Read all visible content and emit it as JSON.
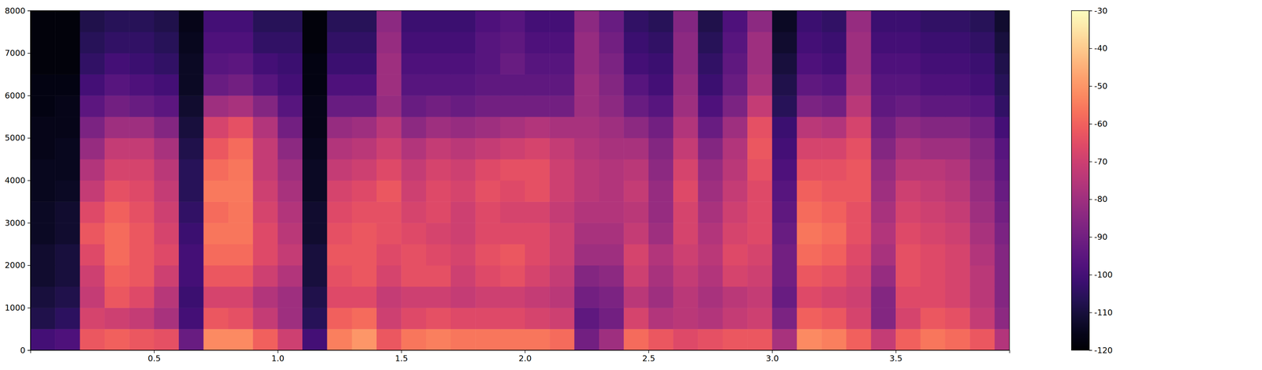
{
  "chart_data": {
    "type": "heatmap",
    "xlim": [
      0,
      3.96
    ],
    "xticks": [
      0.5,
      {
        "value": 1,
        "label": "1.0"
      },
      1.5,
      {
        "value": 2,
        "label": "2.0"
      },
      2.5,
      {
        "value": 3,
        "label": "3.0"
      },
      3.5
    ],
    "ylim": [
      0,
      8000
    ],
    "yticks": [
      0,
      1000,
      2000,
      3000,
      4000,
      5000,
      6000,
      7000,
      8000
    ],
    "x_bins": [
      0,
      0.1,
      0.2,
      0.3,
      0.4,
      0.5,
      0.6,
      0.7,
      0.8,
      0.9,
      1.0,
      1.1,
      1.2,
      1.3,
      1.4,
      1.5,
      1.6,
      1.7,
      1.8,
      1.9,
      2.0,
      2.1,
      2.2,
      2.3,
      2.4,
      2.5,
      2.6,
      2.7,
      2.8,
      2.9,
      3.0,
      3.1,
      3.2,
      3.3,
      3.4,
      3.5,
      3.6,
      3.7,
      3.8,
      3.9,
      3.96
    ],
    "y_bins": [
      0,
      500,
      1000,
      1500,
      2000,
      2500,
      3000,
      3500,
      4000,
      4500,
      5000,
      5500,
      6000,
      6500,
      7000,
      7500,
      8000
    ],
    "z": [
      [
        -100,
        -108,
        -110,
        -112,
        -112,
        -114,
        -114,
        -115,
        -115,
        -116,
        -116,
        -117,
        -117,
        -118,
        -118,
        -118
      ],
      [
        -98,
        -105,
        -108,
        -110,
        -110,
        -112,
        -112,
        -114,
        -115,
        -115,
        -116,
        -116,
        -117,
        -118,
        -118,
        -118
      ],
      [
        -62,
        -68,
        -72,
        -70,
        -66,
        -62,
        -66,
        -72,
        -76,
        -82,
        -88,
        -95,
        -100,
        -104,
        -106,
        -108
      ],
      [
        -60,
        -70,
        -62,
        -60,
        -58,
        -58,
        -60,
        -64,
        -68,
        -72,
        -80,
        -90,
        -96,
        -100,
        -104,
        -106
      ],
      [
        -62,
        -72,
        -66,
        -62,
        -62,
        -62,
        -64,
        -66,
        -68,
        -72,
        -80,
        -92,
        -98,
        -102,
        -104,
        -106
      ],
      [
        -64,
        -78,
        -75,
        -70,
        -66,
        -68,
        -70,
        -72,
        -74,
        -78,
        -86,
        -95,
        -100,
        -104,
        -106,
        -108
      ],
      [
        -92,
        -100,
        -102,
        -100,
        -100,
        -102,
        -104,
        -106,
        -106,
        -108,
        -110,
        -112,
        -114,
        -114,
        -115,
        -116
      ],
      [
        -52,
        -62,
        -68,
        -62,
        -58,
        -56,
        -58,
        -55,
        -58,
        -62,
        -68,
        -80,
        -92,
        -96,
        -98,
        -100
      ],
      [
        -52,
        -64,
        -68,
        -62,
        -58,
        -56,
        -56,
        -55,
        -56,
        -58,
        -64,
        -78,
        -90,
        -95,
        -98,
        -100
      ],
      [
        -60,
        -72,
        -76,
        -70,
        -66,
        -66,
        -68,
        -70,
        -72,
        -72,
        -76,
        -86,
        -96,
        -100,
        -104,
        -106
      ],
      [
        -70,
        -80,
        -80,
        -76,
        -72,
        -74,
        -76,
        -78,
        -80,
        -84,
        -90,
        -96,
        -100,
        -102,
        -104,
        -106
      ],
      [
        -100,
        -106,
        -108,
        -110,
        -110,
        -112,
        -112,
        -114,
        -114,
        -115,
        -116,
        -116,
        -117,
        -117,
        -118,
        -118
      ],
      [
        -54,
        -60,
        -66,
        -64,
        -62,
        -64,
        -66,
        -68,
        -72,
        -76,
        -82,
        -92,
        -98,
        -102,
        -104,
        -106
      ],
      [
        -50,
        -58,
        -66,
        -62,
        -62,
        -62,
        -64,
        -66,
        -70,
        -74,
        -80,
        -92,
        -98,
        -102,
        -104,
        -106
      ],
      [
        -62,
        -70,
        -72,
        -68,
        -66,
        -64,
        -64,
        -62,
        -66,
        -70,
        -74,
        -82,
        -80,
        -80,
        -82,
        -84
      ],
      [
        -56,
        -66,
        -70,
        -64,
        -64,
        -66,
        -68,
        -70,
        -72,
        -76,
        -84,
        -92,
        -96,
        -98,
        -100,
        -102
      ],
      [
        -54,
        -64,
        -70,
        -64,
        -66,
        -68,
        -66,
        -66,
        -68,
        -72,
        -80,
        -90,
        -96,
        -98,
        -100,
        -102
      ],
      [
        -56,
        -66,
        -72,
        -70,
        -68,
        -70,
        -70,
        -68,
        -70,
        -74,
        -82,
        -92,
        -96,
        -98,
        -100,
        -102
      ],
      [
        -56,
        -66,
        -70,
        -66,
        -64,
        -66,
        -66,
        -64,
        -66,
        -72,
        -80,
        -90,
        -94,
        -96,
        -96,
        -98
      ],
      [
        -56,
        -66,
        -70,
        -64,
        -62,
        -66,
        -68,
        -66,
        -64,
        -70,
        -78,
        -90,
        -94,
        -92,
        -94,
        -96
      ],
      [
        -56,
        -68,
        -72,
        -68,
        -66,
        -66,
        -68,
        -64,
        -64,
        -68,
        -76,
        -90,
        -94,
        -96,
        -98,
        -100
      ],
      [
        -58,
        -70,
        -74,
        -72,
        -70,
        -70,
        -72,
        -70,
        -70,
        -72,
        -78,
        -90,
        -94,
        -96,
        -98,
        -100
      ],
      [
        -90,
        -94,
        -90,
        -86,
        -80,
        -78,
        -76,
        -74,
        -74,
        -76,
        -78,
        -80,
        -80,
        -82,
        -82,
        -84
      ],
      [
        -80,
        -90,
        -88,
        -84,
        -80,
        -78,
        -76,
        -76,
        -76,
        -78,
        -80,
        -84,
        -86,
        -88,
        -90,
        -92
      ],
      [
        -58,
        -68,
        -74,
        -70,
        -68,
        -72,
        -74,
        -72,
        -74,
        -78,
        -84,
        -92,
        -96,
        -100,
        -102,
        -104
      ],
      [
        -62,
        -76,
        -80,
        -78,
        -76,
        -80,
        -82,
        -82,
        -84,
        -86,
        -90,
        -96,
        -100,
        -102,
        -104,
        -106
      ],
      [
        -66,
        -74,
        -74,
        -72,
        -70,
        -68,
        -68,
        -66,
        -68,
        -72,
        -76,
        -80,
        -82,
        -84,
        -84,
        -86
      ],
      [
        -64,
        -76,
        -78,
        -76,
        -74,
        -76,
        -78,
        -80,
        -82,
        -86,
        -92,
        -98,
        -102,
        -104,
        -106,
        -108
      ],
      [
        -62,
        -72,
        -74,
        -68,
        -66,
        -68,
        -70,
        -72,
        -74,
        -76,
        -80,
        -88,
        -92,
        -94,
        -96,
        -98
      ],
      [
        -62,
        -70,
        -72,
        -70,
        -68,
        -66,
        -66,
        -66,
        -64,
        -62,
        -64,
        -72,
        -78,
        -80,
        -80,
        -84
      ],
      [
        -78,
        -88,
        -92,
        -90,
        -90,
        -92,
        -94,
        -96,
        -98,
        -100,
        -102,
        -106,
        -108,
        -110,
        -112,
        -114
      ],
      [
        -52,
        -60,
        -66,
        -62,
        -58,
        -56,
        -58,
        -60,
        -64,
        -68,
        -74,
        -88,
        -94,
        -98,
        -100,
        -102
      ],
      [
        -54,
        -62,
        -68,
        -64,
        -60,
        -58,
        -60,
        -62,
        -64,
        -68,
        -76,
        -90,
        -96,
        -100,
        -102,
        -104
      ],
      [
        -60,
        -68,
        -70,
        -68,
        -66,
        -64,
        -64,
        -62,
        -62,
        -64,
        -68,
        -74,
        -78,
        -80,
        -80,
        -82
      ],
      [
        -72,
        -86,
        -86,
        -82,
        -78,
        -76,
        -78,
        -80,
        -82,
        -86,
        -90,
        -94,
        -96,
        -98,
        -100,
        -102
      ],
      [
        -60,
        -68,
        -66,
        -64,
        -64,
        -66,
        -68,
        -70,
        -74,
        -78,
        -84,
        -92,
        -96,
        -98,
        -100,
        -102
      ],
      [
        -56,
        -62,
        -66,
        -66,
        -66,
        -68,
        -70,
        -72,
        -74,
        -80,
        -86,
        -94,
        -98,
        -100,
        -102,
        -104
      ],
      [
        -58,
        -64,
        -68,
        -68,
        -68,
        -70,
        -72,
        -74,
        -76,
        -80,
        -86,
        -94,
        -98,
        -100,
        -102,
        -104
      ],
      [
        -62,
        -72,
        -74,
        -74,
        -76,
        -78,
        -80,
        -82,
        -84,
        -86,
        -90,
        -96,
        -100,
        -102,
        -104,
        -106
      ],
      [
        -76,
        -84,
        -86,
        -86,
        -86,
        -88,
        -90,
        -92,
        -94,
        -96,
        -100,
        -104,
        -106,
        -108,
        -110,
        -112
      ]
    ],
    "colorbar": {
      "range": [
        -120,
        -30
      ],
      "ticks": [
        -120,
        -110,
        -100,
        -90,
        -80,
        -70,
        -60,
        -50,
        -40,
        -30
      ]
    }
  }
}
